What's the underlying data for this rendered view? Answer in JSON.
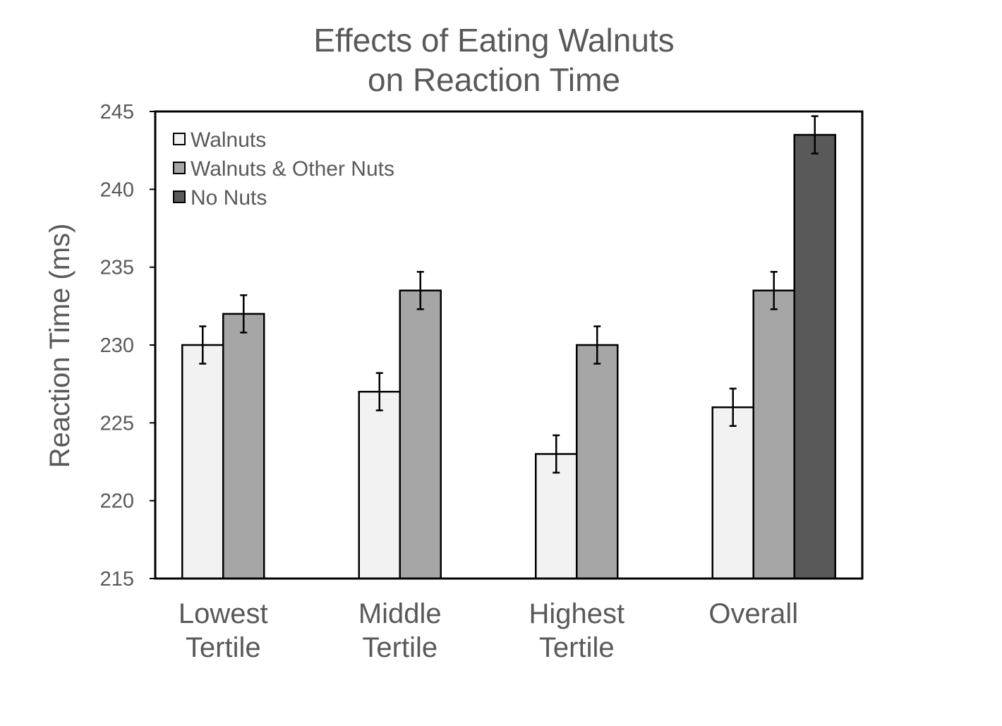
{
  "chart_data": {
    "type": "bar",
    "title_lines": [
      "Effects of Eating Walnuts",
      "on Reaction Time"
    ],
    "ylabel": "Reaction Time (ms)",
    "xlabel": "",
    "ylim": [
      215,
      245
    ],
    "yticks": [
      215,
      220,
      225,
      230,
      235,
      240,
      245
    ],
    "categories": [
      [
        "Lowest",
        "Tertile"
      ],
      [
        "Middle",
        "Tertile"
      ],
      [
        "Highest",
        "Tertile"
      ],
      [
        "Overall"
      ]
    ],
    "series": [
      {
        "name": "Walnuts",
        "color": "#f2f2f2",
        "values": [
          230,
          227,
          223,
          226
        ],
        "errors": [
          1.2,
          1.2,
          1.2,
          1.2
        ]
      },
      {
        "name": "Walnuts & Other Nuts",
        "color": "#a6a6a6",
        "values": [
          232,
          233.5,
          230,
          233.5
        ],
        "errors": [
          1.2,
          1.2,
          1.2,
          1.2
        ]
      },
      {
        "name": "No Nuts",
        "color": "#595959",
        "values": [
          null,
          null,
          null,
          243.5
        ],
        "errors": [
          null,
          null,
          null,
          1.2
        ]
      }
    ],
    "legend_position": "top-left",
    "grid": false
  }
}
